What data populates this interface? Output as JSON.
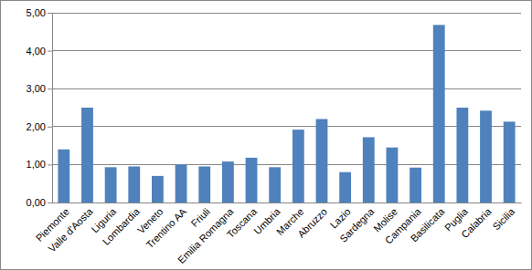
{
  "chart_data": {
    "type": "bar",
    "categories": [
      "Piemonte",
      "Valle d'Aosta",
      "Liguria",
      "Lombardia",
      "Veneto",
      "Trentino AA",
      "Friuli",
      "Emilia Romagna",
      "Toscana",
      "Umbria",
      "Marche",
      "Abruzzo",
      "Lazio",
      "Sardegna",
      "Molise",
      "Campania",
      "Basilicata",
      "Puglia",
      "Calabria",
      "Sicilia"
    ],
    "values": [
      1.4,
      2.5,
      0.93,
      0.95,
      0.7,
      1.0,
      0.95,
      1.08,
      1.18,
      0.93,
      1.92,
      2.2,
      0.8,
      1.72,
      1.45,
      0.92,
      4.68,
      2.5,
      2.42,
      2.13
    ],
    "color": "#4f81bd",
    "ylim": [
      0,
      5
    ],
    "yticks": [
      {
        "value": 0,
        "label": "0,00"
      },
      {
        "value": 1,
        "label": "1,00"
      },
      {
        "value": 2,
        "label": "2,00"
      },
      {
        "value": 3,
        "label": "3,00"
      },
      {
        "value": 4,
        "label": "4,00"
      },
      {
        "value": 5,
        "label": "5,00"
      }
    ],
    "grid": true
  }
}
